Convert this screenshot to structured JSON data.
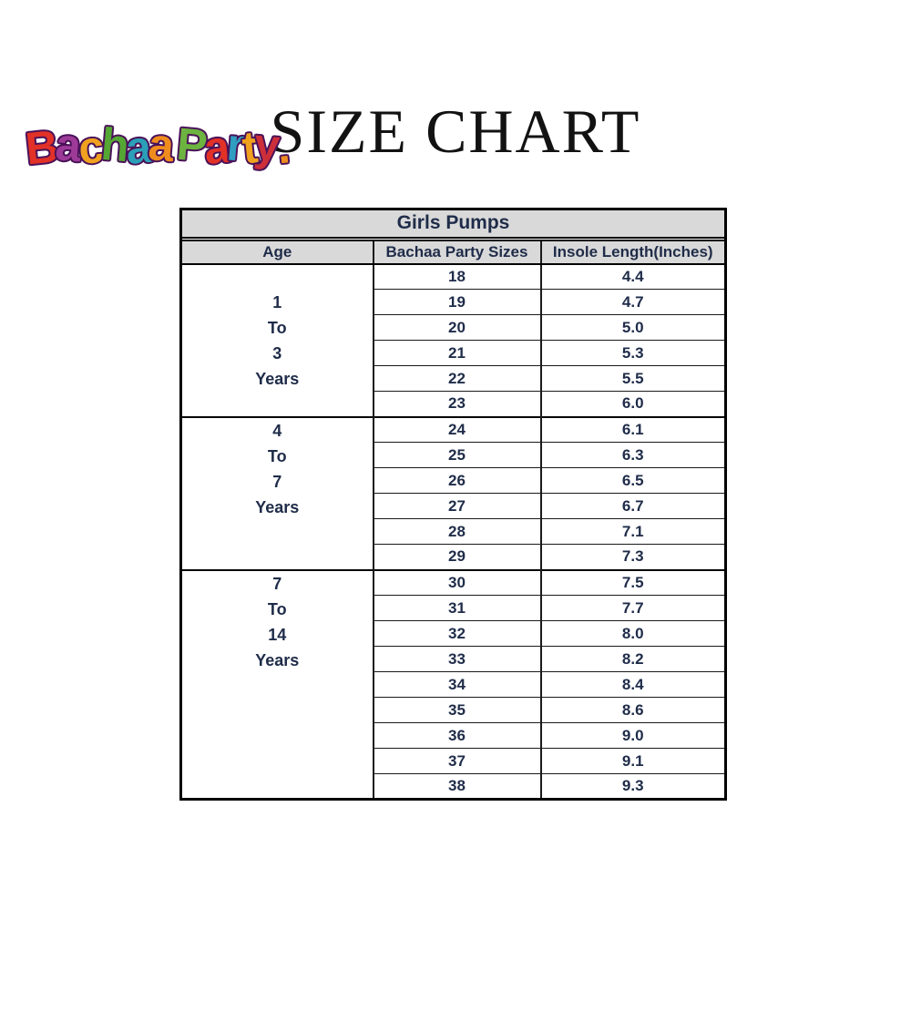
{
  "logo": {
    "brand": "Bachaa Party",
    "outline_color": "#4a1259",
    "letters": [
      {
        "ch": "B",
        "color": "#e23127"
      },
      {
        "ch": "a",
        "color": "#9d3a98"
      },
      {
        "ch": "c",
        "color": "#f0a21f"
      },
      {
        "ch": "h",
        "color": "#55a733"
      },
      {
        "ch": "a",
        "color": "#2b9fb8"
      },
      {
        "ch": "a",
        "color": "#ef8c1e"
      },
      {
        "ch": " ",
        "color": "#ffffff"
      },
      {
        "ch": "P",
        "color": "#6cb33f"
      },
      {
        "ch": "a",
        "color": "#e23127"
      },
      {
        "ch": "r",
        "color": "#2f9ec1"
      },
      {
        "ch": "t",
        "color": "#f0a21f"
      },
      {
        "ch": "y",
        "color": "#cd2f3a"
      },
      {
        "ch": ".",
        "color": "#ef8c1e"
      }
    ]
  },
  "title": "SIZE CHART",
  "table": {
    "title": "Girls Pumps",
    "columns": [
      "Age",
      "Bachaa Party Sizes",
      "Insole Length(Inches)"
    ],
    "groups": [
      {
        "age_lines": [
          "1",
          "To",
          "3",
          "Years"
        ],
        "age_align": "middle",
        "rows": [
          [
            "18",
            "4.4"
          ],
          [
            "19",
            "4.7"
          ],
          [
            "20",
            "5.0"
          ],
          [
            "21",
            "5.3"
          ],
          [
            "22",
            "5.5"
          ],
          [
            "23",
            "6.0"
          ]
        ]
      },
      {
        "age_lines": [
          "4",
          "To",
          "7",
          "Years"
        ],
        "age_align": "top",
        "rows": [
          [
            "24",
            "6.1"
          ],
          [
            "25",
            "6.3"
          ],
          [
            "26",
            "6.5"
          ],
          [
            "27",
            "6.7"
          ],
          [
            "28",
            "7.1"
          ],
          [
            "29",
            "7.3"
          ]
        ]
      },
      {
        "age_lines": [
          "7",
          "To",
          "14",
          "Years"
        ],
        "age_align": "top",
        "rows": [
          [
            "30",
            "7.5"
          ],
          [
            "31",
            "7.7"
          ],
          [
            "32",
            "8.0"
          ],
          [
            "33",
            "8.2"
          ],
          [
            "34",
            "8.4"
          ],
          [
            "35",
            "8.6"
          ],
          [
            "36",
            "9.0"
          ],
          [
            "37",
            "9.1"
          ],
          [
            "38",
            "9.3"
          ]
        ]
      }
    ]
  },
  "colors": {
    "header_bg": "#d9d9d9",
    "border": "#000000",
    "text": "#1f2c49"
  }
}
